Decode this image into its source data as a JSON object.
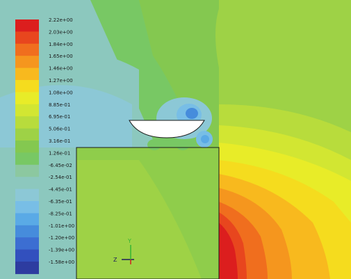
{
  "legend": {
    "labels": [
      "2.22e+00",
      "2.03e+00",
      "1.84e+00",
      "1.65e+00",
      "1.46e+00",
      "1.27e+00",
      "1.08e+00",
      "8.85e-01",
      "6.95e-01",
      "5.06e-01",
      "3.16e-01",
      "1.26e-01",
      "-6.45e-02",
      "-2.54e-01",
      "-4.45e-01",
      "-6.35e-01",
      "-8.25e-01",
      "-1.01e+00",
      "-1.20e+00",
      "-1.39e+00",
      "-1.58e+00"
    ],
    "colors": [
      "#dc1e1e",
      "#e8461e",
      "#f06e1e",
      "#f5961e",
      "#f8b91e",
      "#f5dc1e",
      "#e8ec28",
      "#d2e632",
      "#b8dc3c",
      "#9ed246",
      "#84c850",
      "#78c864",
      "#8cc8a0",
      "#8cc8be",
      "#8cc8d6",
      "#78bee6",
      "#5aaae6",
      "#468cdc",
      "#3c6ed2",
      "#3250be",
      "#2d3ca0"
    ]
  },
  "axes": {
    "x_label": "Z",
    "y_label": "Y",
    "x_color": "#1e1e5a",
    "y_color": "#32b432",
    "z_color": "#d21e1e"
  }
}
